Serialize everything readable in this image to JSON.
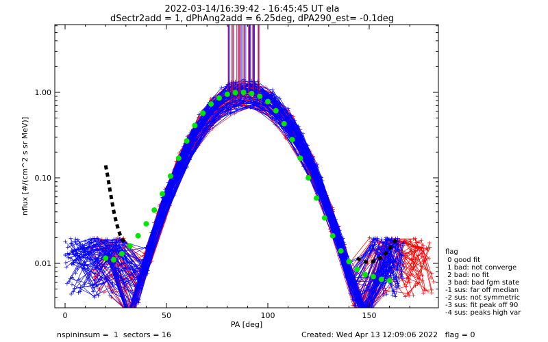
{
  "header": {
    "line1": "2022-03-14/16:39:42 - 16:45:45 UT ela",
    "line2": "dSectr2add = 1, dPhAng2add = 6.25deg, dPA290_est=  -0.1deg"
  },
  "footer": {
    "left": "nspininsum =  1  sectors = 16",
    "right": "Created: Wed Apr 13 12:09:06 2022   flag = 0"
  },
  "legend": {
    "title": "flag",
    "items": [
      " 0 good fit",
      " 1 bad: not converge",
      " 2 bad: no fit",
      " 3 bad: bad fgm state",
      "-1 sus: far off median",
      "-2 sus: not symmetric",
      "-3 sus: fit peak off 90",
      "-4 sus: peaks high var"
    ]
  },
  "colors": {
    "red": "#ff0000",
    "blue": "#0000ff",
    "green": "#00e600",
    "black": "#000000"
  },
  "chart_data": {
    "type": "line",
    "title": "2022-03-14/16:39:42 - 16:45:45 UT ela",
    "xlabel": "PA [deg]",
    "ylabel": "nflux [#/(cm^2 s sr MeV)]",
    "yscale": "log",
    "xlim": [
      -5,
      182
    ],
    "ylim": [
      0.003,
      6
    ],
    "xticks": [
      0,
      50,
      100,
      150
    ],
    "xtick_labels": [
      "0",
      "50",
      "100",
      "150"
    ],
    "yticks": [
      0.01,
      0.1,
      1.0
    ],
    "ytick_labels": [
      "0.01",
      "0.10",
      "1.00"
    ],
    "series": [
      {
        "style": "dots",
        "color": "green",
        "x": [
          20,
          24,
          28,
          32,
          36,
          40,
          44,
          48,
          52,
          56,
          60,
          64,
          68,
          72,
          76,
          80,
          84,
          88,
          92,
          96,
          100,
          104,
          108,
          112,
          116,
          120,
          124,
          128,
          132,
          136,
          140,
          144,
          148,
          152,
          156,
          160
        ],
        "y": [
          0.0115,
          0.011,
          0.013,
          0.016,
          0.021,
          0.029,
          0.042,
          0.065,
          0.105,
          0.17,
          0.27,
          0.41,
          0.57,
          0.73,
          0.86,
          0.95,
          0.99,
          1.0,
          0.97,
          0.9,
          0.78,
          0.61,
          0.43,
          0.28,
          0.17,
          0.1,
          0.058,
          0.034,
          0.021,
          0.014,
          0.0105,
          0.0085,
          0.0074,
          0.007,
          0.0065,
          0.0063
        ]
      },
      {
        "style": "dashed-thick",
        "color": "black",
        "x": [
          20,
          21,
          22,
          23,
          24,
          25,
          26,
          27,
          28,
          29,
          30
        ],
        "y": [
          0.14,
          0.105,
          0.075,
          0.055,
          0.041,
          0.032,
          0.026,
          0.022,
          0.0195,
          0.018,
          0.017
        ]
      },
      {
        "style": "dashed-thick",
        "color": "black",
        "x": [
          144,
          146,
          148,
          150,
          152,
          154,
          156,
          158,
          160,
          162,
          164
        ],
        "y": [
          0.0115,
          0.0108,
          0.0104,
          0.0103,
          0.0105,
          0.011,
          0.0118,
          0.013,
          0.0148,
          0.0172,
          0.02
        ]
      }
    ]
  }
}
